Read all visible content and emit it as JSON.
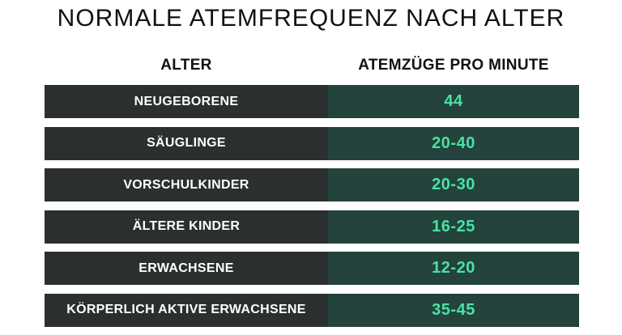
{
  "title": "NORMALE ATEMFREQUENZ NACH ALTER",
  "table": {
    "headers": {
      "age": "ALTER",
      "rate": "ATEMZÜGE PRO MINUTE"
    },
    "rows": [
      {
        "age": "NEUGEBORENE",
        "rate": "44"
      },
      {
        "age": "SÄUGLINGE",
        "rate": "20-40"
      },
      {
        "age": "VORSCHULKINDER",
        "rate": "20-30"
      },
      {
        "age": "ÄLTERE KINDER",
        "rate": "16-25"
      },
      {
        "age": "ERWACHSENE",
        "rate": "12-20"
      },
      {
        "age": "KÖRPERLICH AKTIVE ERWACHSENE",
        "rate": "35-45"
      }
    ]
  },
  "colors": {
    "age_cell_bg": "#2c2f30",
    "rate_cell_bg": "#23433c",
    "rate_text": "#49e2a4",
    "age_text": "#ffffff",
    "heading_text": "#111111"
  }
}
